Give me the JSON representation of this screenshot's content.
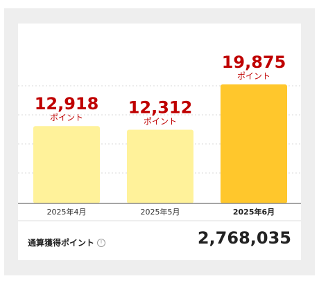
{
  "chart_data": {
    "type": "bar",
    "categories": [
      "2025年4月",
      "2025年5月",
      "2025年6月"
    ],
    "values": [
      12918,
      12312,
      19875
    ],
    "value_labels": [
      "12,918",
      "12,312",
      "19,875"
    ],
    "unit_label": "ポイント",
    "highlighted_index": 2,
    "grid": true,
    "colors": {
      "bar": "#fff29a",
      "bar_highlight": "#ffc72c",
      "value_text": "#bf0000",
      "grid": "#d8d8d8",
      "axis": "#888888"
    }
  },
  "total": {
    "label": "通算獲得ポイント",
    "value": "2,768,035",
    "info_icon": "info-circle-icon"
  }
}
